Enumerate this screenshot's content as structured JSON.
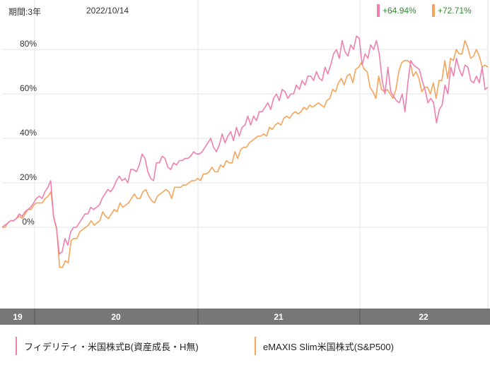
{
  "header": {
    "period_label": "期間:3年",
    "date": "2022/10/14"
  },
  "badges": [
    {
      "value": "+64.94%",
      "color": "#f07fb0"
    },
    {
      "value": "+72.71%",
      "color": "#f5a45a"
    }
  ],
  "chart_data": {
    "type": "line",
    "title": "",
    "xlabel": "",
    "ylabel": "",
    "x_tick_labels": [
      "19",
      "20",
      "21",
      "22"
    ],
    "y_ticks": [
      0,
      20,
      40,
      60,
      80
    ],
    "y_tick_labels": [
      "0%",
      "20%",
      "40%",
      "60%",
      "80%"
    ],
    "ylim": [
      -41,
      96
    ],
    "grid": true,
    "legend_position": "bottom",
    "series": [
      {
        "name": "フィデリティ・米国株式B(資産成長・H無)",
        "color": "#f07fb0",
        "values": [
          0,
          1,
          2,
          3,
          3,
          4,
          6,
          5,
          7,
          8,
          9,
          11,
          13,
          14,
          13,
          16,
          18,
          21,
          5,
          0,
          -12,
          -11,
          -5,
          -8,
          -2,
          0,
          0,
          2,
          4,
          6,
          6,
          9,
          8,
          9,
          10,
          13,
          15,
          17,
          16,
          18,
          21,
          23,
          21,
          22,
          20,
          26,
          26,
          25,
          28,
          33,
          31,
          25,
          22,
          21,
          29,
          29,
          32,
          31,
          27,
          26,
          29,
          28,
          30,
          30,
          31,
          31,
          32,
          34,
          33,
          33,
          34,
          36,
          38,
          40,
          36,
          34,
          37,
          42,
          38,
          41,
          43,
          39,
          45,
          41,
          45,
          46,
          50,
          46,
          50,
          48,
          52,
          52,
          54,
          56,
          53,
          58,
          60,
          57,
          62,
          61,
          58,
          60,
          60,
          64,
          62,
          66,
          64,
          68,
          68,
          66,
          70,
          67,
          66,
          72,
          69,
          73,
          78,
          80,
          76,
          84,
          79,
          77,
          82,
          80,
          86,
          85,
          73,
          78,
          76,
          82,
          80,
          84,
          78,
          66,
          60,
          72,
          61,
          59,
          57,
          56,
          60,
          52,
          65,
          75,
          73,
          72,
          71,
          66,
          62,
          56,
          58,
          56,
          47,
          53,
          55,
          64,
          60,
          72,
          68,
          76,
          71,
          68,
          73,
          72,
          66,
          65,
          68,
          65,
          72,
          62,
          63
        ]
      },
      {
        "name": "eMAXIS Slim米国株式(S&P500)",
        "color": "#f5a45a",
        "values": [
          0,
          0,
          2,
          3,
          3,
          4,
          5,
          4,
          6,
          8,
          8,
          10,
          11,
          11,
          11,
          13,
          14,
          16,
          4,
          -1,
          -18,
          -18,
          -15,
          -16,
          -6,
          -5,
          -5,
          -2,
          -1,
          0,
          1,
          3,
          1,
          2,
          3,
          7,
          5,
          4,
          6,
          8,
          7,
          11,
          9,
          10,
          11,
          13,
          15,
          13,
          13,
          16,
          17,
          14,
          12,
          11,
          14,
          15,
          16,
          17,
          16,
          13,
          18,
          18,
          18,
          19,
          19,
          20,
          21,
          21,
          22,
          21,
          24,
          24,
          25,
          27,
          25,
          25,
          28,
          27,
          30,
          29,
          29,
          34,
          31,
          35,
          36,
          36,
          38,
          39,
          40,
          41,
          41,
          42,
          41,
          45,
          44,
          46,
          47,
          46,
          49,
          50,
          49,
          51,
          52,
          51,
          52,
          54,
          53,
          55,
          54,
          55,
          56,
          55,
          54,
          57,
          58,
          62,
          61,
          65,
          67,
          64,
          68,
          69,
          65,
          71,
          72,
          74,
          71,
          70,
          63,
          61,
          58,
          68,
          62,
          61,
          62,
          60,
          58,
          62,
          70,
          74,
          75,
          75,
          74,
          68,
          70,
          67,
          61,
          63,
          63,
          60,
          65,
          58,
          66,
          66,
          75,
          67,
          76,
          75,
          80,
          78,
          78,
          84,
          81,
          76,
          77,
          80,
          77,
          72,
          73,
          72
        ]
      }
    ]
  }
}
